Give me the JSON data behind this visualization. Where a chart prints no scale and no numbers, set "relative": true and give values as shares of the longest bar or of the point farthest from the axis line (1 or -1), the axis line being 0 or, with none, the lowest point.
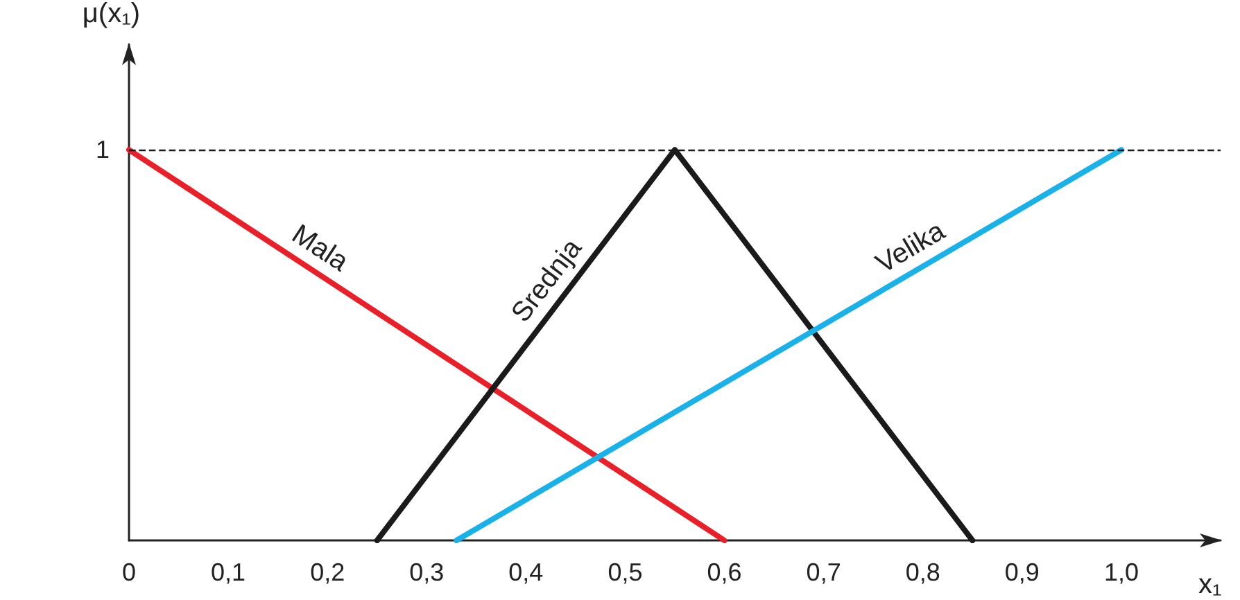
{
  "chart_data": {
    "type": "line",
    "xlabel": "x₁",
    "ylabel": "μ(x₁)",
    "xlim": [
      0,
      1.1
    ],
    "relative": true,
    "annotations": [
      {
        "text": "1",
        "x": 0,
        "y": 1
      }
    ],
    "xticks": [
      0,
      {
        "value": 0.1,
        "label": "0,1"
      },
      {
        "value": 0.2,
        "label": "0,2"
      },
      {
        "value": 0.3,
        "label": "0,3"
      },
      {
        "value": 0.4,
        "label": "0,4"
      },
      {
        "value": 0.5,
        "label": "0,5"
      },
      {
        "value": 0.6,
        "label": "0,6"
      },
      {
        "value": 0.7,
        "label": "0,7"
      },
      {
        "value": 0.8,
        "label": "0,8"
      },
      {
        "value": 0.9,
        "label": "0,9"
      },
      {
        "value": 1.0,
        "label": "1,0"
      }
    ],
    "series": [
      {
        "name": "Mala",
        "color": "#e8202a",
        "x": [
          0,
          0.6
        ],
        "values": [
          1,
          0
        ]
      },
      {
        "name": "Srednja",
        "color": "#1a1a1a",
        "x": [
          0.25,
          0.55,
          0.85
        ],
        "values": [
          0,
          1,
          0
        ]
      },
      {
        "name": "Velika",
        "color": "#1ab0e8",
        "x": [
          0.33,
          1.0
        ],
        "values": [
          0,
          1
        ]
      }
    ],
    "ref_lines": [
      {
        "axis": "y",
        "value": 1,
        "label": null,
        "color": "#1a1a1a",
        "line_style": "dashed"
      }
    ],
    "grid": false,
    "legend": false,
    "marker": "none",
    "line_style": "solid"
  }
}
